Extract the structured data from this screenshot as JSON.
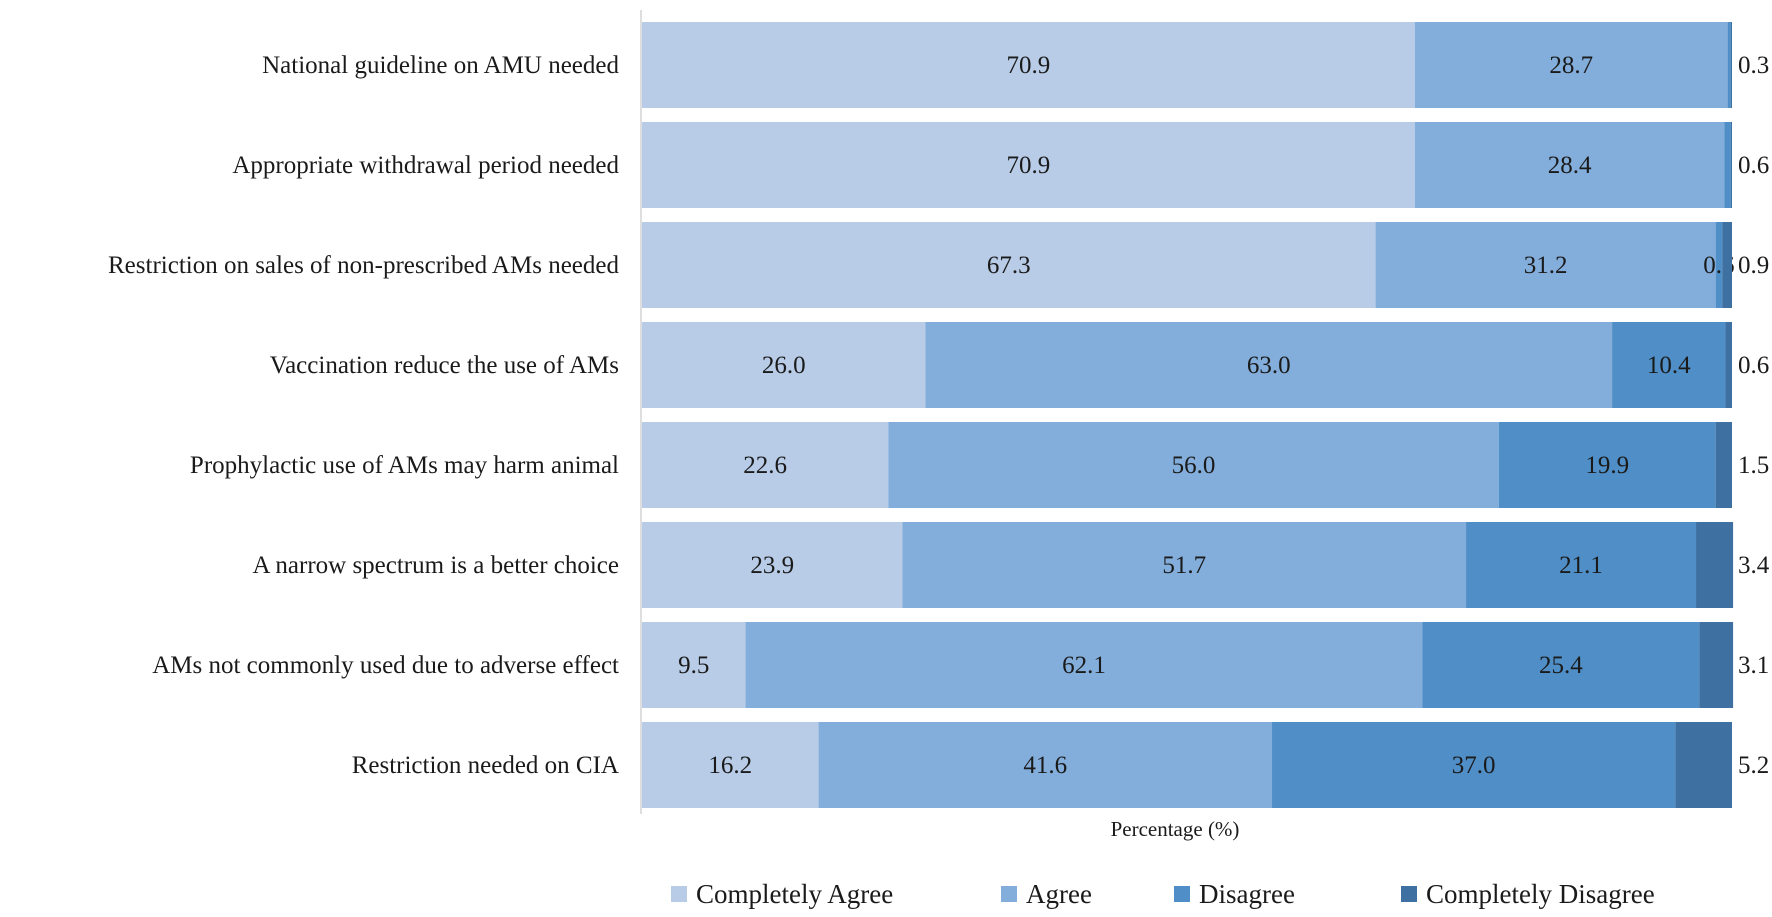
{
  "chart_data": {
    "type": "bar",
    "orientation": "horizontal",
    "stacked": true,
    "title": "",
    "xlabel": "Percentage (%)",
    "ylabel": "",
    "xlim": [
      0,
      100
    ],
    "grid": false,
    "legend_position": "bottom",
    "categories": [
      "National guideline on AMU needed",
      "Appropriate withdrawal period needed",
      "Restriction on sales of non-prescribed AMs needed",
      "Vaccination reduce the use of AMs",
      "Prophylactic use of AMs may harm animal",
      "A narrow spectrum is a better choice",
      "AMs not commonly used due to adverse effect",
      "Restriction needed on CIA"
    ],
    "series": [
      {
        "name": "Completely Agree",
        "color": "#b8cce8",
        "values": [
          70.9,
          70.9,
          67.3,
          26.0,
          22.6,
          23.9,
          9.5,
          16.2
        ]
      },
      {
        "name": "Agree",
        "color": "#83aedb",
        "values": [
          28.7,
          28.4,
          31.2,
          63.0,
          56.0,
          51.7,
          62.1,
          41.6
        ]
      },
      {
        "name": "Disagree",
        "color": "#4f8ec6",
        "values": [
          0.3,
          0.6,
          0.6,
          10.4,
          19.9,
          21.1,
          25.4,
          37.0
        ]
      },
      {
        "name": "Completely Disagree",
        "color": "#3e71a2",
        "values": [
          0.1,
          0.1,
          0.9,
          0.6,
          1.5,
          3.4,
          3.1,
          5.2
        ]
      }
    ],
    "data_labels": [
      [
        "70.9",
        "28.7",
        "",
        ""
      ],
      [
        "70.9",
        "28.4",
        "",
        ""
      ],
      [
        "67.3",
        "31.2",
        "0.6",
        ""
      ],
      [
        "26.0",
        "63.0",
        "10.4",
        ""
      ],
      [
        "22.6",
        "56.0",
        "19.9",
        ""
      ],
      [
        "23.9",
        "51.7",
        "21.1",
        ""
      ],
      [
        "9.5",
        "62.1",
        "25.4",
        ""
      ],
      [
        "16.2",
        "41.6",
        "37.0",
        ""
      ]
    ],
    "outside_labels": [
      "0.3",
      "0.6",
      "0.9",
      "0.6",
      "1.5",
      "3.4",
      "3.1",
      "5.2"
    ]
  }
}
